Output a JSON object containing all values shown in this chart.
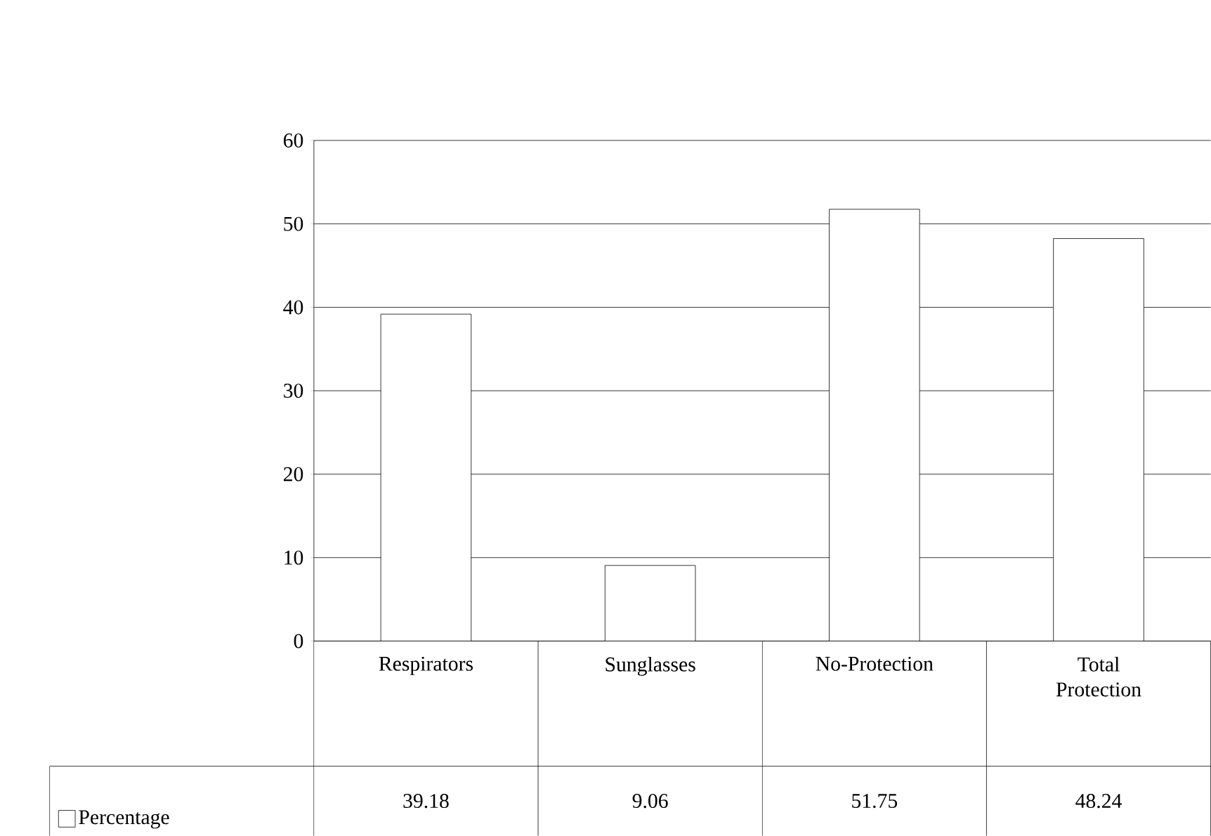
{
  "chart_data": {
    "type": "bar",
    "categories": [
      "Respirators",
      "Sunglasses",
      "No-Protection",
      "Total Protection"
    ],
    "series": [
      {
        "name": "Percentage",
        "color": "#ffffff",
        "values": [
          39.18,
          9.06,
          51.75,
          48.24
        ],
        "value_labels": [
          "39.18",
          "9.06",
          "51.75",
          "48.24"
        ]
      }
    ],
    "ylim": [
      0,
      60
    ],
    "yticks": [
      0,
      10,
      20,
      30,
      40,
      50,
      60
    ],
    "grid": "y",
    "legend": "bottom left"
  }
}
